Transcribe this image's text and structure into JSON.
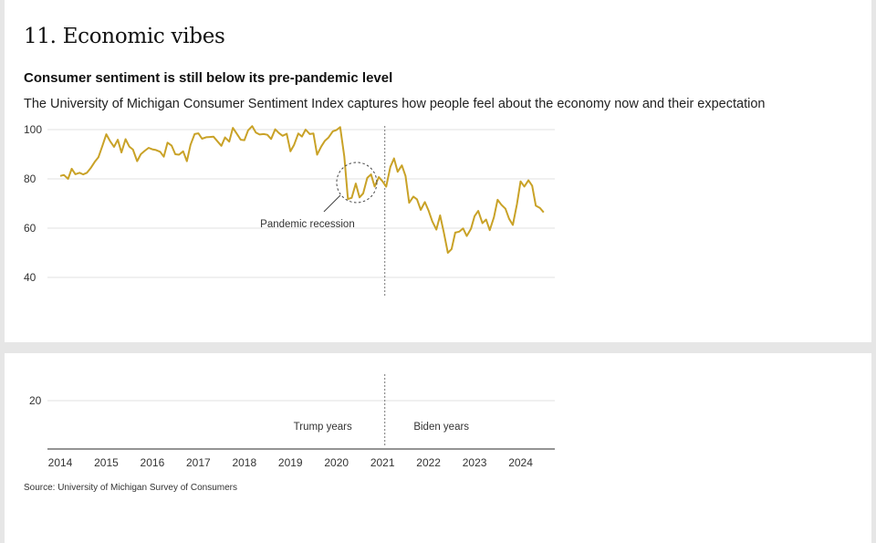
{
  "header": {
    "section_title": "11. Economic vibes",
    "subtitle": "Consumer sentiment is still below its pre-pandemic level",
    "description": "The University of Michigan Consumer Sentiment Index captures how people feel about the economy now and their expectation"
  },
  "footer": {
    "source": "Source: University of Michigan Survey of Consumers"
  },
  "colors": {
    "line": "#c9a227",
    "grid": "#e0e0e0",
    "axis": "#555555",
    "text": "#333333"
  },
  "chart_data": {
    "type": "line",
    "title": "Consumer sentiment is still below its pre-pandemic level",
    "xlabel": "",
    "ylabel": "",
    "xlim": [
      2014,
      2024.75
    ],
    "ylim": [
      20,
      100
    ],
    "grid": true,
    "y_ticks_top": [
      100,
      80,
      60,
      40
    ],
    "y_ticks_bottom": [
      20
    ],
    "x_ticks": [
      "2014",
      "2015",
      "2016",
      "2017",
      "2018",
      "2019",
      "2020",
      "2021",
      "2022",
      "2023",
      "2024"
    ],
    "eras": [
      {
        "label": "Trump years",
        "x": 2019.7
      },
      {
        "label": "Biden years",
        "x": 2021.3
      }
    ],
    "divider_x": 2021.05,
    "annotation": {
      "label": "Pandemic recession",
      "x": 2020.5,
      "y": 80
    },
    "series": [
      {
        "x": [
          2014.0,
          2014.08,
          2014.17,
          2014.25,
          2014.33,
          2014.42,
          2014.5,
          2014.58,
          2014.67,
          2014.75,
          2014.83,
          2014.92,
          2015.0,
          2015.08,
          2015.17,
          2015.25,
          2015.33,
          2015.42,
          2015.5,
          2015.58,
          2015.67,
          2015.75,
          2015.83,
          2015.92,
          2016.0,
          2016.08,
          2016.17,
          2016.25,
          2016.33,
          2016.42,
          2016.5,
          2016.58,
          2016.67,
          2016.75,
          2016.83,
          2016.92,
          2017.0,
          2017.08,
          2017.17,
          2017.25,
          2017.33,
          2017.42,
          2017.5,
          2017.58,
          2017.67,
          2017.75,
          2017.83,
          2017.92,
          2018.0,
          2018.08,
          2018.17,
          2018.25,
          2018.33,
          2018.42,
          2018.5,
          2018.58,
          2018.67,
          2018.75,
          2018.83,
          2018.92,
          2019.0,
          2019.08,
          2019.17,
          2019.25,
          2019.33,
          2019.42,
          2019.5,
          2019.58,
          2019.67,
          2019.75,
          2019.83,
          2019.92,
          2020.0,
          2020.08,
          2020.17,
          2020.25,
          2020.33,
          2020.42,
          2020.5,
          2020.58,
          2020.67,
          2020.75,
          2020.83,
          2020.92,
          2021.0,
          2021.08,
          2021.17,
          2021.25,
          2021.33,
          2021.42,
          2021.5,
          2021.58,
          2021.67,
          2021.75,
          2021.83,
          2021.92,
          2022.0,
          2022.08,
          2022.17,
          2022.25,
          2022.33,
          2022.42,
          2022.5,
          2022.58,
          2022.67,
          2022.75,
          2022.83,
          2022.92,
          2023.0,
          2023.08,
          2023.17,
          2023.25,
          2023.33,
          2023.42,
          2023.5,
          2023.58,
          2023.67,
          2023.75,
          2023.83,
          2023.92,
          2024.0,
          2024.08,
          2024.17,
          2024.25,
          2024.33,
          2024.42,
          2024.5
        ],
        "values": [
          81.2,
          81.6,
          80.0,
          84.1,
          81.9,
          82.5,
          81.8,
          82.5,
          84.6,
          86.9,
          88.8,
          93.6,
          98.1,
          95.4,
          93.0,
          95.9,
          90.7,
          96.1,
          93.1,
          91.9,
          87.2,
          90.0,
          91.3,
          92.6,
          92.0,
          91.7,
          91.0,
          89.0,
          94.7,
          93.5,
          90.0,
          89.8,
          91.2,
          87.2,
          93.8,
          98.2,
          98.5,
          96.3,
          96.9,
          97.0,
          97.1,
          95.1,
          93.4,
          96.8,
          95.1,
          100.7,
          98.5,
          95.9,
          95.7,
          99.7,
          101.4,
          98.8,
          98.0,
          98.2,
          97.9,
          96.2,
          100.1,
          98.6,
          97.5,
          98.3,
          91.2,
          93.8,
          98.4,
          97.2,
          100.0,
          98.2,
          98.4,
          89.8,
          93.2,
          95.5,
          96.8,
          99.3,
          99.8,
          101.0,
          89.1,
          71.8,
          72.3,
          78.1,
          72.5,
          74.1,
          80.4,
          81.8,
          76.9,
          80.7,
          79.0,
          76.8,
          84.9,
          88.3,
          82.9,
          85.5,
          81.2,
          70.3,
          72.8,
          71.7,
          67.4,
          70.6,
          67.2,
          62.8,
          59.4,
          65.2,
          58.4,
          50.0,
          51.5,
          58.2,
          58.6,
          59.9,
          56.8,
          59.7,
          64.9,
          67.0,
          62.0,
          63.5,
          59.2,
          64.4,
          71.5,
          69.5,
          67.9,
          63.8,
          61.3,
          69.7,
          79.0,
          76.9,
          79.4,
          77.2,
          69.1,
          68.2,
          66.4
        ]
      }
    ]
  }
}
